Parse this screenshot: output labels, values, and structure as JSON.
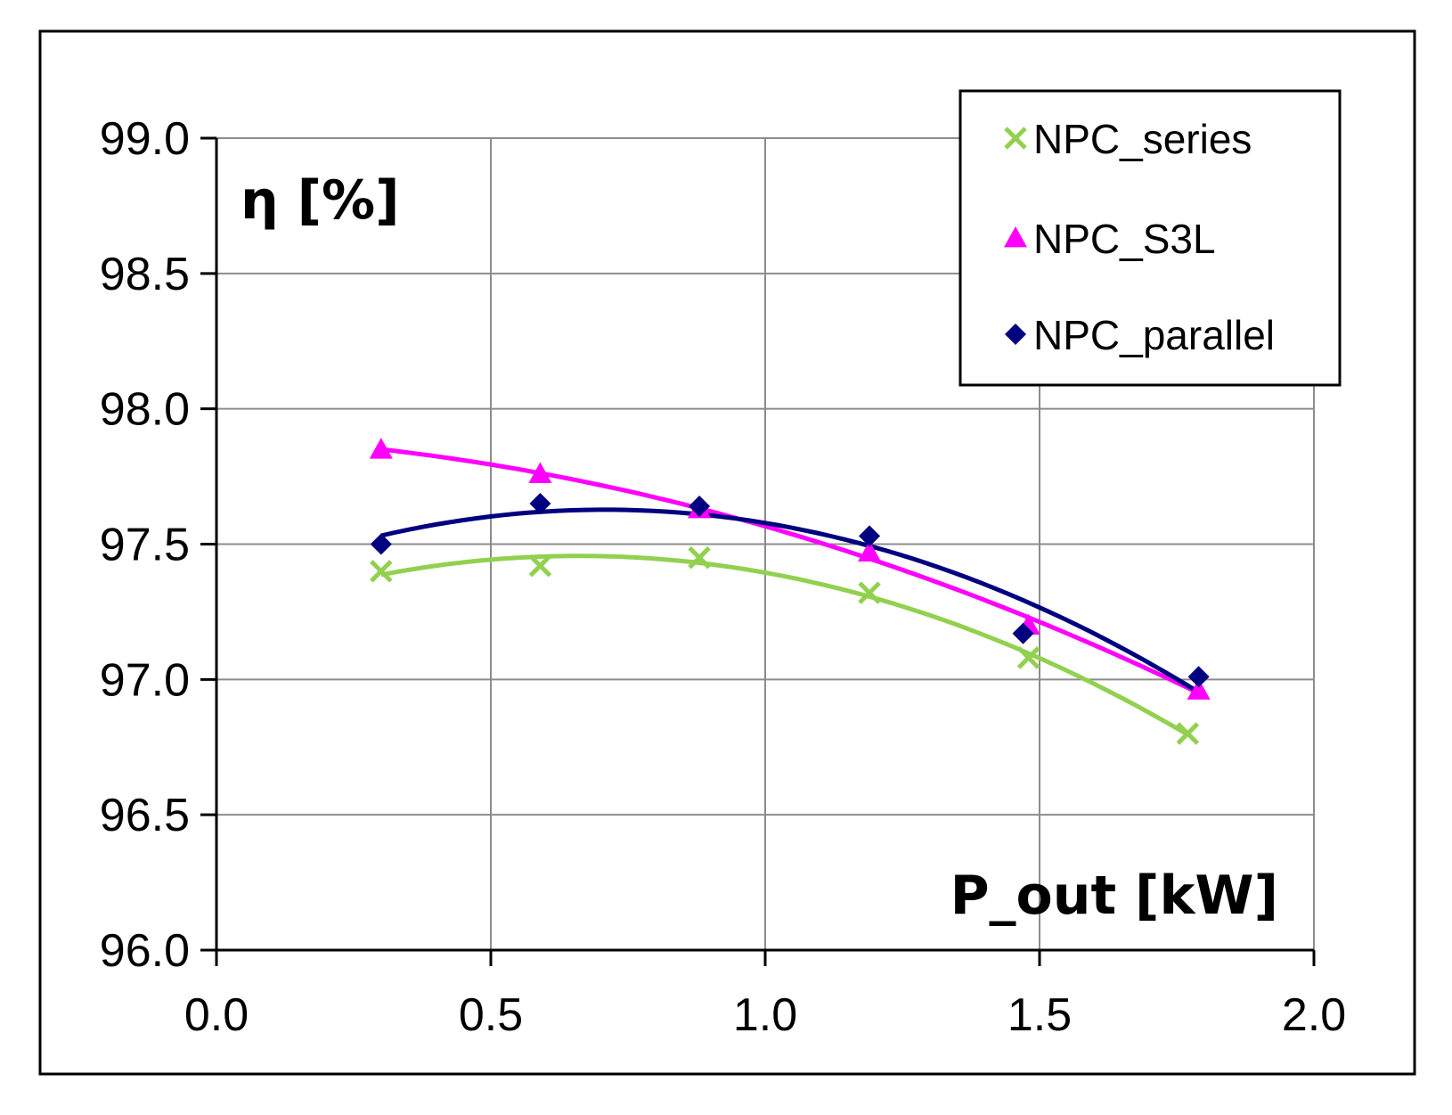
{
  "chart_data": {
    "type": "scatter",
    "title": "",
    "xlabel": "P_out [kW]",
    "ylabel": "η [%]",
    "xlim": [
      0.0,
      2.0
    ],
    "ylim": [
      96.0,
      99.0
    ],
    "x_ticks": [
      "0.0",
      "0.5",
      "1.0",
      "1.5",
      "2.0"
    ],
    "y_ticks": [
      "96.0",
      "96.5",
      "97.0",
      "97.5",
      "98.0",
      "98.5",
      "99.0"
    ],
    "grid": true,
    "legend_position": "top-right",
    "trendline": "polynomial-2",
    "series": [
      {
        "name": "NPC_series",
        "marker": "x",
        "color": "#92D050",
        "x": [
          0.3,
          0.59,
          0.88,
          1.19,
          1.48,
          1.77
        ],
        "y": [
          97.4,
          97.42,
          97.45,
          97.32,
          97.08,
          96.8
        ]
      },
      {
        "name": "NPC_S3L",
        "marker": "triangle",
        "color": "#FF00FF",
        "x": [
          0.3,
          0.59,
          0.88,
          1.19,
          1.48,
          1.79
        ],
        "y": [
          97.85,
          97.76,
          97.63,
          97.47,
          97.2,
          96.96
        ]
      },
      {
        "name": "NPC_parallel",
        "marker": "diamond",
        "color": "#000080",
        "x": [
          0.3,
          0.59,
          0.88,
          1.19,
          1.47,
          1.79
        ],
        "y": [
          97.5,
          97.65,
          97.64,
          97.53,
          97.17,
          97.01
        ]
      }
    ]
  }
}
